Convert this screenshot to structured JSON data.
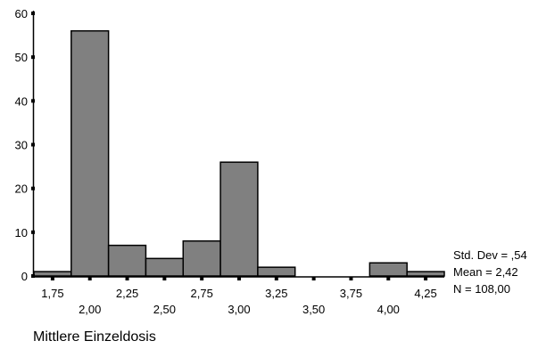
{
  "chart_data": {
    "type": "bar",
    "subtype": "histogram",
    "bins": [
      {
        "from": 1.625,
        "to": 1.875,
        "count": 1
      },
      {
        "from": 1.875,
        "to": 2.125,
        "count": 56
      },
      {
        "from": 2.125,
        "to": 2.375,
        "count": 7
      },
      {
        "from": 2.375,
        "to": 2.625,
        "count": 4
      },
      {
        "from": 2.625,
        "to": 2.875,
        "count": 8
      },
      {
        "from": 2.875,
        "to": 3.125,
        "count": 26
      },
      {
        "from": 3.125,
        "to": 3.375,
        "count": 2
      },
      {
        "from": 3.375,
        "to": 3.625,
        "count": 0
      },
      {
        "from": 3.625,
        "to": 3.875,
        "count": 0
      },
      {
        "from": 3.875,
        "to": 4.125,
        "count": 3
      },
      {
        "from": 4.125,
        "to": 4.375,
        "count": 1
      }
    ],
    "x_tick_labels": [
      "1,75",
      "2,00",
      "2,25",
      "2,50",
      "2,75",
      "3,00",
      "3,25",
      "3,50",
      "3,75",
      "4,00",
      "4,25"
    ],
    "y_ticks": [
      0,
      10,
      20,
      30,
      40,
      50,
      60
    ],
    "ylim": [
      0,
      60
    ],
    "xlabel": "Mittlere Einzeldosis",
    "ylabel": "",
    "title": "",
    "bar_color": "#808080",
    "stats": {
      "std_dev": "Std. Dev = ,54",
      "mean": "Mean = 2,42",
      "n": "N = 108,00"
    }
  }
}
